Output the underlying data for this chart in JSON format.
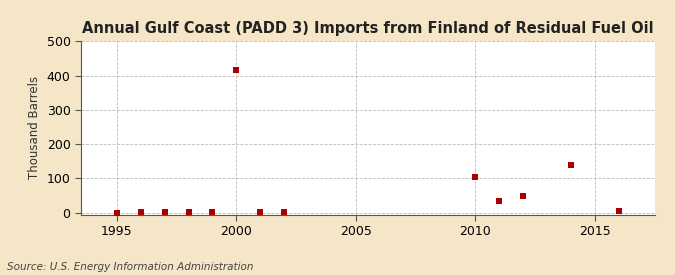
{
  "title": "Annual Gulf Coast (PADD 3) Imports from Finland of Residual Fuel Oil",
  "ylabel": "Thousand Barrels",
  "source": "Source: U.S. Energy Information Administration",
  "background_color": "#f5e6c8",
  "plot_bg_color": "#ffffff",
  "marker_color": "#aa0000",
  "data_points": [
    [
      1995,
      0
    ],
    [
      1996,
      2
    ],
    [
      1997,
      2
    ],
    [
      1998,
      3
    ],
    [
      1999,
      3
    ],
    [
      2000,
      417
    ],
    [
      2001,
      2
    ],
    [
      2002,
      2
    ],
    [
      2010,
      103
    ],
    [
      2011,
      35
    ],
    [
      2012,
      50
    ],
    [
      2014,
      138
    ],
    [
      2016,
      5
    ]
  ],
  "xlim": [
    1993.5,
    2017.5
  ],
  "ylim": [
    -5,
    500
  ],
  "yticks": [
    0,
    100,
    200,
    300,
    400,
    500
  ],
  "xticks": [
    1995,
    2000,
    2005,
    2010,
    2015
  ],
  "grid_color": "#bbbbbb",
  "title_fontsize": 10.5,
  "label_fontsize": 8.5,
  "tick_fontsize": 9,
  "source_fontsize": 7.5
}
